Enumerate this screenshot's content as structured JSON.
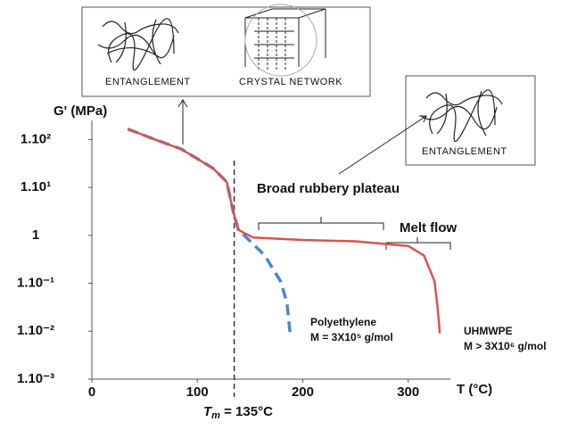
{
  "chart_data": {
    "type": "line",
    "y_label": "G' (MPa)",
    "x_label": "T (°C)",
    "xlim": [
      0,
      340
    ],
    "xticks": [
      0,
      100,
      200,
      300
    ],
    "ylim": [
      0.001,
      250
    ],
    "ylog": true,
    "yticks": [
      {
        "value": 100,
        "label": "1.10²"
      },
      {
        "value": 10,
        "label": "1.10¹"
      },
      1,
      {
        "value": 0.1,
        "label": "1.10⁻¹"
      },
      {
        "value": 0.01,
        "label": "1.10⁻²"
      },
      {
        "value": 0.001,
        "label": "1.10⁻³"
      }
    ],
    "series": [
      {
        "name": "UHMWPE",
        "label": "M > 3X10⁶ g/mol",
        "color": "#d9534f",
        "dashed": false,
        "x": [
          34,
          60,
          85,
          115,
          128,
          134,
          139,
          153,
          200,
          250,
          300,
          315,
          325,
          328,
          330
        ],
        "values": [
          166,
          100,
          63,
          25,
          13,
          3.2,
          1.3,
          0.9,
          0.8,
          0.75,
          0.6,
          0.38,
          0.11,
          0.03,
          0.009
        ]
      },
      {
        "name": "Polyethylene",
        "label": "M = 3X10⁵ g/mol",
        "color": "#4a86d4",
        "dashed": true,
        "x": [
          34,
          60,
          85,
          115,
          128,
          134,
          139,
          149,
          164,
          179,
          185,
          188
        ],
        "values": [
          166,
          100,
          63,
          25,
          13,
          3.2,
          1.3,
          0.8,
          0.38,
          0.11,
          0.04,
          0.009
        ]
      }
    ],
    "vline": {
      "value": 135,
      "label": "T",
      "sub": "m",
      "text": " = 135°C"
    },
    "annotations": [
      "Broad rubbery plateau",
      "Melt flow"
    ],
    "insets": [
      "ENTANGLEMENT",
      "CRYSTAL NETWORK",
      "ENTANGLEMENT"
    ]
  }
}
